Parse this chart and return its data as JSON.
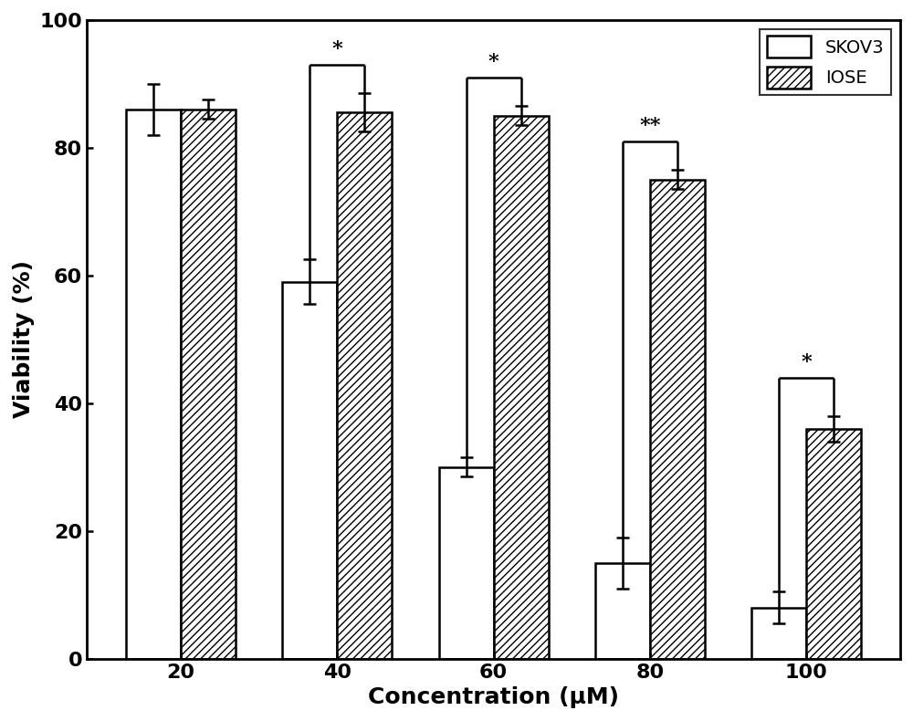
{
  "concentrations": [
    20,
    40,
    60,
    80,
    100
  ],
  "skov3_values": [
    86,
    59,
    30,
    15,
    8
  ],
  "iose_values": [
    86,
    85.5,
    85,
    75,
    36
  ],
  "skov3_errors": [
    4,
    3.5,
    1.5,
    4,
    2.5
  ],
  "iose_errors": [
    1.5,
    3,
    1.5,
    1.5,
    2
  ],
  "xlabel": "Concentration (μM)",
  "ylabel": "Viability (%)",
  "ylim": [
    0,
    100
  ],
  "yticks": [
    0,
    20,
    40,
    60,
    80,
    100
  ],
  "xticks": [
    20,
    40,
    60,
    80,
    100
  ],
  "bar_width": 0.35,
  "skov3_color": "#ffffff",
  "iose_color": "#ffffff",
  "edge_color": "#000000",
  "hatch_pattern": "////",
  "legend_labels": [
    "SKOV3",
    "IOSE"
  ],
  "significance": [
    {
      "idx": 1,
      "label": "*",
      "y_bracket": 93,
      "skov3_attach": 62.5,
      "iose_attach": 88.5
    },
    {
      "idx": 2,
      "label": "*",
      "y_bracket": 91,
      "skov3_attach": 31.5,
      "iose_attach": 86.5
    },
    {
      "idx": 3,
      "label": "**",
      "y_bracket": 81,
      "skov3_attach": 19,
      "iose_attach": 76.5
    },
    {
      "idx": 4,
      "label": "*",
      "y_bracket": 44,
      "skov3_attach": 10.5,
      "iose_attach": 38
    }
  ],
  "axis_label_fontsize": 18,
  "tick_fontsize": 16,
  "legend_fontsize": 14,
  "sig_fontsize": 16
}
